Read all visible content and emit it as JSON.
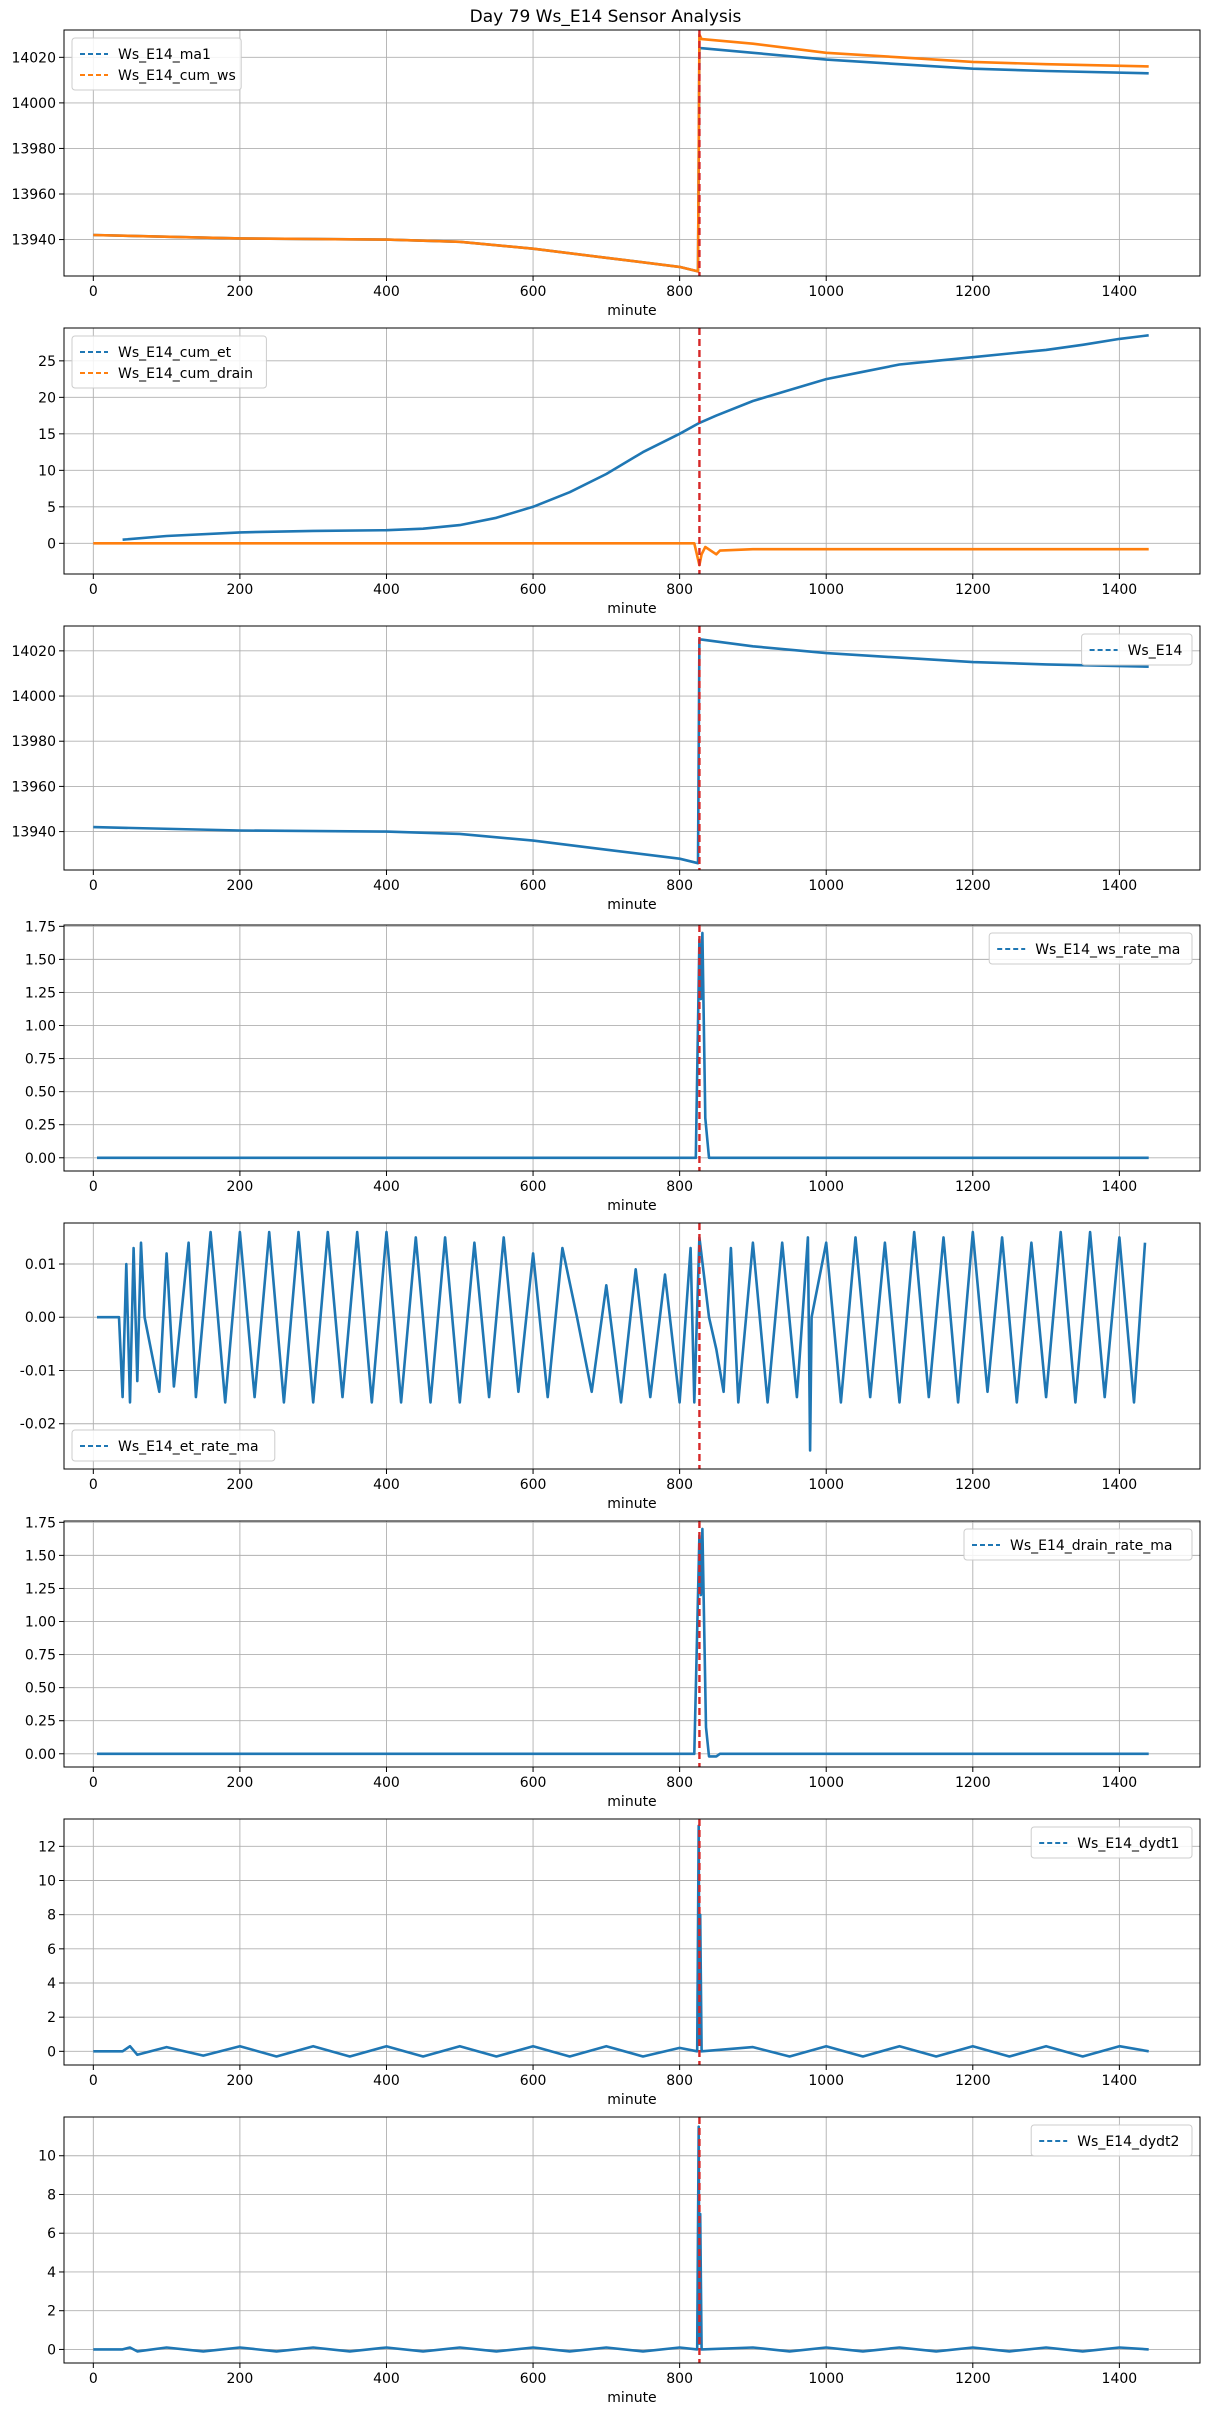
{
  "figure": {
    "suptitle": "Day 79 Ws_E14 Sensor Analysis",
    "event_marker": {
      "x": 827,
      "color": "#d62728",
      "style": "dashed"
    },
    "colors": {
      "blue": "#1f77b4",
      "orange": "#ff7f0e"
    }
  },
  "chart_data": [
    {
      "type": "line",
      "xlabel": "minute",
      "xlim": [
        -40,
        1510
      ],
      "ylim": [
        13924,
        14032
      ],
      "xticks": [
        0,
        200,
        400,
        600,
        800,
        1000,
        1200,
        1400
      ],
      "yticks": [
        13940,
        13960,
        13980,
        14000,
        14020
      ],
      "legend": "top-left",
      "series": [
        {
          "name": "Ws_E14_ma1",
          "color": "#1f77b4",
          "x": [
            0,
            200,
            400,
            500,
            600,
            700,
            800,
            825,
            827,
            830,
            900,
            1000,
            1100,
            1200,
            1300,
            1440
          ],
          "y": [
            13942,
            13940.5,
            13940,
            13939,
            13936,
            13932,
            13928,
            13926,
            14024,
            14024,
            14022,
            14019,
            14017,
            14015,
            14014,
            14013
          ]
        },
        {
          "name": "Ws_E14_cum_ws",
          "color": "#ff7f0e",
          "x": [
            0,
            200,
            400,
            500,
            600,
            700,
            800,
            825,
            827,
            830,
            900,
            1000,
            1100,
            1200,
            1300,
            1440
          ],
          "y": [
            13942,
            13940.5,
            13940,
            13939,
            13936,
            13932,
            13928,
            13926,
            14030,
            14028,
            14026,
            14022,
            14020,
            14018,
            14017,
            14016
          ]
        }
      ]
    },
    {
      "type": "line",
      "xlabel": "minute",
      "xlim": [
        -40,
        1510
      ],
      "ylim": [
        -4.2,
        29.5
      ],
      "xticks": [
        0,
        200,
        400,
        600,
        800,
        1000,
        1200,
        1400
      ],
      "yticks": [
        0,
        5,
        10,
        15,
        20,
        25
      ],
      "legend": "top-left",
      "series": [
        {
          "name": "Ws_E14_cum_et",
          "color": "#1f77b4",
          "x": [
            40,
            100,
            200,
            300,
            400,
            450,
            500,
            550,
            600,
            650,
            700,
            750,
            800,
            827,
            850,
            900,
            950,
            1000,
            1050,
            1100,
            1150,
            1200,
            1250,
            1300,
            1350,
            1400,
            1440
          ],
          "y": [
            0.5,
            1,
            1.5,
            1.7,
            1.8,
            2,
            2.5,
            3.5,
            5,
            7,
            9.5,
            12.5,
            15,
            16.5,
            17.5,
            19.5,
            21,
            22.5,
            23.5,
            24.5,
            25,
            25.5,
            26,
            26.5,
            27.2,
            28,
            28.5
          ]
        },
        {
          "name": "Ws_E14_cum_drain",
          "color": "#ff7f0e",
          "x": [
            0,
            200,
            400,
            600,
            800,
            820,
            827,
            830,
            835,
            850,
            855,
            900,
            1100,
            1300,
            1440
          ],
          "y": [
            0,
            0,
            0,
            0,
            0,
            0,
            -3,
            -1.5,
            -0.5,
            -1.5,
            -1,
            -0.8,
            -0.8,
            -0.8,
            -0.8
          ]
        }
      ]
    },
    {
      "type": "line",
      "xlabel": "minute",
      "xlim": [
        -40,
        1510
      ],
      "ylim": [
        13923,
        14031
      ],
      "xticks": [
        0,
        200,
        400,
        600,
        800,
        1000,
        1200,
        1400
      ],
      "yticks": [
        13940,
        13960,
        13980,
        14000,
        14020
      ],
      "legend": "top-right",
      "series": [
        {
          "name": "Ws_E14",
          "color": "#1f77b4",
          "x": [
            0,
            200,
            400,
            500,
            600,
            700,
            800,
            825,
            827,
            830,
            900,
            1000,
            1100,
            1200,
            1300,
            1440
          ],
          "y": [
            13942,
            13940.5,
            13940,
            13939,
            13936,
            13932,
            13928,
            13926,
            14025,
            14025,
            14022,
            14019,
            14017,
            14015,
            14014,
            14013
          ]
        }
      ]
    },
    {
      "type": "line",
      "xlabel": "minute",
      "xlim": [
        -40,
        1510
      ],
      "ylim": [
        -0.1,
        1.76
      ],
      "xticks": [
        0,
        200,
        400,
        600,
        800,
        1000,
        1200,
        1400
      ],
      "yticks": [
        0.0,
        0.25,
        0.5,
        0.75,
        1.0,
        1.25,
        1.5,
        1.75
      ],
      "legend": "top-right",
      "series": [
        {
          "name": "Ws_E14_ws_rate_ma",
          "color": "#1f77b4",
          "x": [
            5,
            200,
            400,
            600,
            800,
            822,
            827,
            829,
            831,
            835,
            840,
            1000,
            1200,
            1440
          ],
          "y": [
            0,
            0,
            0,
            0,
            0,
            0,
            1.65,
            1.2,
            1.7,
            0.3,
            0,
            0,
            0,
            0
          ]
        }
      ]
    },
    {
      "type": "line",
      "xlabel": "minute",
      "xlim": [
        -40,
        1510
      ],
      "ylim": [
        -0.0285,
        0.0177
      ],
      "xticks": [
        0,
        200,
        400,
        600,
        800,
        1000,
        1200,
        1400
      ],
      "yticks": [
        -0.02,
        -0.01,
        0.0,
        0.01
      ],
      "legend": "bottom-left",
      "series": [
        {
          "name": "Ws_E14_et_rate_ma",
          "color": "#1f77b4",
          "x": [
            5,
            35,
            40,
            45,
            50,
            55,
            60,
            65,
            70,
            90,
            100,
            110,
            130,
            140,
            160,
            180,
            200,
            220,
            240,
            260,
            280,
            300,
            320,
            340,
            360,
            380,
            400,
            420,
            440,
            460,
            480,
            500,
            520,
            540,
            560,
            580,
            600,
            620,
            640,
            660,
            680,
            700,
            720,
            740,
            760,
            780,
            800,
            815,
            820,
            827,
            840,
            850,
            860,
            870,
            880,
            900,
            920,
            940,
            960,
            975,
            978,
            980,
            1000,
            1020,
            1040,
            1060,
            1080,
            1100,
            1120,
            1140,
            1160,
            1180,
            1200,
            1220,
            1240,
            1260,
            1280,
            1300,
            1320,
            1340,
            1360,
            1380,
            1400,
            1420,
            1435
          ],
          "y": [
            0,
            0,
            -0.015,
            0.01,
            -0.016,
            0.013,
            -0.012,
            0.014,
            0,
            -0.014,
            0.012,
            -0.013,
            0.014,
            -0.015,
            0.016,
            -0.016,
            0.016,
            -0.015,
            0.016,
            -0.016,
            0.016,
            -0.016,
            0.016,
            -0.015,
            0.016,
            -0.016,
            0.016,
            -0.016,
            0.015,
            -0.016,
            0.015,
            -0.016,
            0.014,
            -0.015,
            0.015,
            -0.014,
            0.012,
            -0.015,
            0.013,
            0,
            -0.014,
            0.006,
            -0.016,
            0.009,
            -0.015,
            0.008,
            -0.016,
            0.013,
            -0.016,
            0.015,
            0,
            -0.006,
            -0.014,
            0.013,
            -0.016,
            0.014,
            -0.016,
            0.014,
            -0.015,
            0.015,
            -0.025,
            0,
            0.014,
            -0.016,
            0.015,
            -0.015,
            0.014,
            -0.016,
            0.016,
            -0.015,
            0.015,
            -0.016,
            0.016,
            -0.014,
            0.015,
            -0.016,
            0.014,
            -0.015,
            0.016,
            -0.016,
            0.016,
            -0.015,
            0.015,
            -0.016,
            0.014
          ]
        }
      ]
    },
    {
      "type": "line",
      "xlabel": "minute",
      "xlim": [
        -40,
        1510
      ],
      "ylim": [
        -0.1,
        1.76
      ],
      "xticks": [
        0,
        200,
        400,
        600,
        800,
        1000,
        1200,
        1400
      ],
      "yticks": [
        0.0,
        0.25,
        0.5,
        0.75,
        1.0,
        1.25,
        1.5,
        1.75
      ],
      "legend": "top-right",
      "series": [
        {
          "name": "Ws_E14_drain_rate_ma",
          "color": "#1f77b4",
          "x": [
            5,
            200,
            400,
            600,
            800,
            820,
            827,
            829,
            831,
            836,
            840,
            850,
            855,
            860,
            1000,
            1200,
            1440
          ],
          "y": [
            0,
            0,
            0,
            0,
            0,
            0,
            1.65,
            1.2,
            1.7,
            0.2,
            -0.02,
            -0.02,
            0,
            0,
            0,
            0,
            0
          ]
        }
      ]
    },
    {
      "type": "line",
      "xlabel": "minute",
      "xlim": [
        -40,
        1510
      ],
      "ylim": [
        -0.8,
        13.6
      ],
      "xticks": [
        0,
        200,
        400,
        600,
        800,
        1000,
        1200,
        1400
      ],
      "yticks": [
        0,
        2,
        4,
        6,
        8,
        10,
        12
      ],
      "legend": "top-right",
      "series": [
        {
          "name": "Ws_E14_dydt1",
          "color": "#1f77b4",
          "x": [
            0,
            40,
            50,
            60,
            100,
            150,
            200,
            250,
            300,
            350,
            400,
            450,
            500,
            550,
            600,
            650,
            700,
            750,
            800,
            824,
            826,
            827,
            828,
            830,
            900,
            950,
            1000,
            1050,
            1100,
            1150,
            1200,
            1250,
            1300,
            1350,
            1400,
            1440
          ],
          "y": [
            0,
            0,
            0.3,
            -0.2,
            0.25,
            -0.25,
            0.3,
            -0.3,
            0.3,
            -0.3,
            0.3,
            -0.3,
            0.3,
            -0.3,
            0.3,
            -0.3,
            0.3,
            -0.3,
            0.2,
            0,
            13.2,
            0.5,
            8,
            0,
            0.25,
            -0.3,
            0.3,
            -0.3,
            0.3,
            -0.3,
            0.3,
            -0.3,
            0.3,
            -0.3,
            0.3,
            0
          ]
        }
      ]
    },
    {
      "type": "line",
      "xlabel": "minute",
      "xlim": [
        -40,
        1510
      ],
      "ylim": [
        -0.7,
        12
      ],
      "xticks": [
        0,
        200,
        400,
        600,
        800,
        1000,
        1200,
        1400
      ],
      "yticks": [
        0,
        2,
        4,
        6,
        8,
        10
      ],
      "legend": "top-right",
      "series": [
        {
          "name": "Ws_E14_dydt2",
          "color": "#1f77b4",
          "x": [
            0,
            40,
            50,
            60,
            100,
            150,
            200,
            250,
            300,
            350,
            400,
            450,
            500,
            550,
            600,
            650,
            700,
            750,
            800,
            824,
            826,
            827,
            828,
            830,
            900,
            950,
            1000,
            1050,
            1100,
            1150,
            1200,
            1250,
            1300,
            1350,
            1400,
            1440
          ],
          "y": [
            0,
            0,
            0.1,
            -0.1,
            0.1,
            -0.1,
            0.1,
            -0.1,
            0.1,
            -0.1,
            0.1,
            -0.1,
            0.1,
            -0.1,
            0.1,
            -0.1,
            0.1,
            -0.1,
            0.1,
            0,
            11.5,
            0.3,
            7,
            0,
            0.1,
            -0.1,
            0.1,
            -0.1,
            0.1,
            -0.1,
            0.1,
            -0.1,
            0.1,
            -0.1,
            0.1,
            0
          ]
        }
      ]
    }
  ]
}
